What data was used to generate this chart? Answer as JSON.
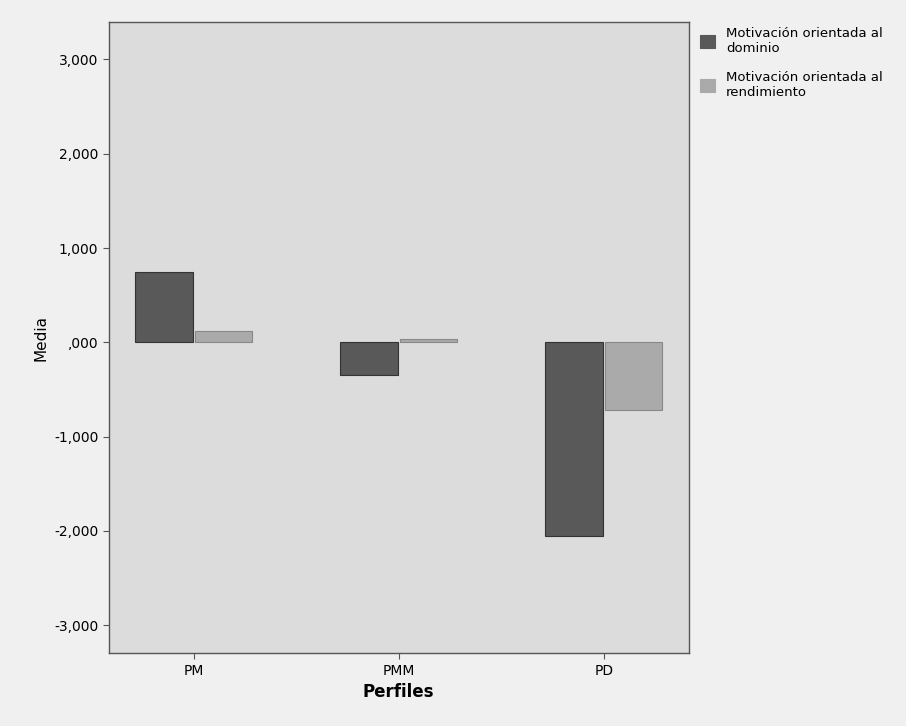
{
  "categories": [
    "PM",
    "PMM",
    "PD"
  ],
  "dark_values": [
    750,
    -350,
    -2050
  ],
  "light_values": [
    120,
    40,
    -720
  ],
  "dark_color": "#595959",
  "light_color": "#aaaaaa",
  "outer_bg_color": "#f0f0f0",
  "plot_bg_color": "#dcdcdc",
  "ylabel": "Media",
  "xlabel": "Perfiles",
  "xlabel_fontsize": 12,
  "xlabel_fontweight": "bold",
  "ylabel_fontsize": 11,
  "yticks": [
    -3000,
    -2000,
    -1000,
    0,
    1000,
    2000,
    3000
  ],
  "ytick_labels": [
    "-3,000",
    "-2,000",
    "-1,000",
    ",000",
    "1,000",
    "2,000",
    "3,000"
  ],
  "ylim": [
    -3300,
    3400
  ],
  "dark_bar_width": 0.28,
  "light_bar_width": 0.28,
  "legend_label_dark": "Motivación orientada al\ndominio",
  "legend_label_light": "Motivación orientada al\nrendimiento",
  "tick_fontsize": 10,
  "figsize": [
    9.06,
    7.26
  ],
  "dpi": 100
}
